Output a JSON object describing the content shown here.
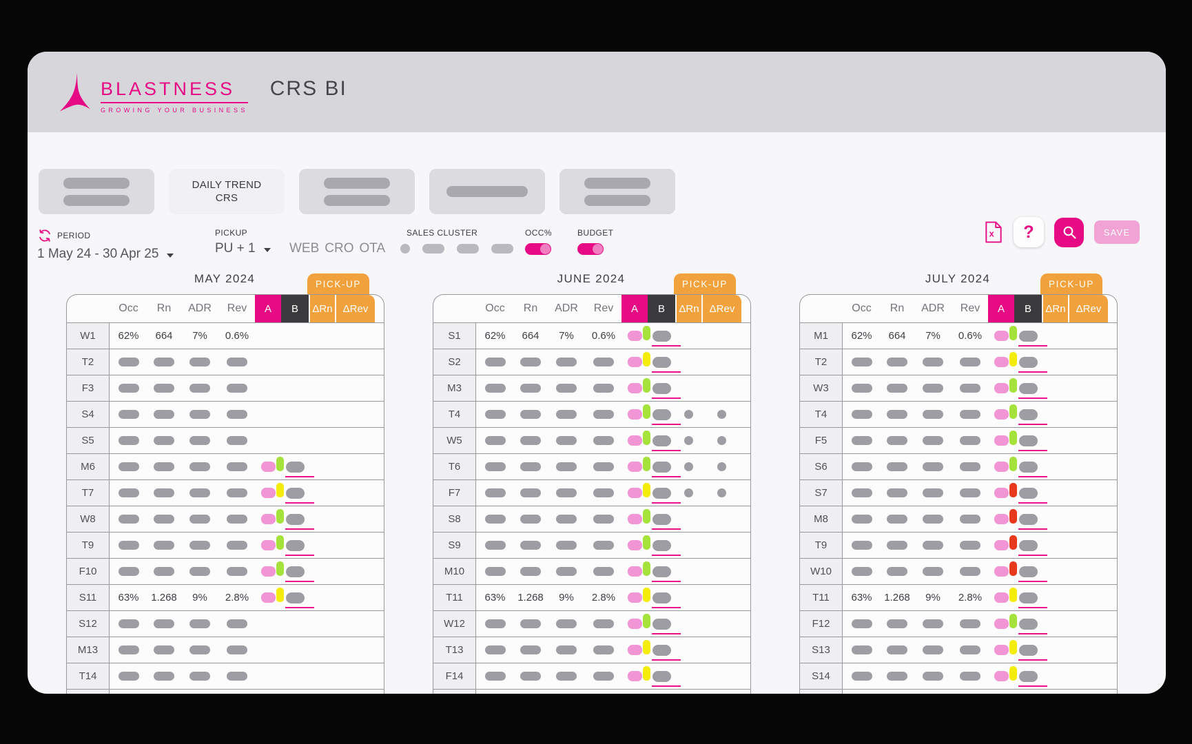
{
  "app": {
    "brand": "BLASTNESS",
    "tagline": "GROWING YOUR BUSINESS",
    "title": "CRS BI"
  },
  "tabs": {
    "items": [
      {
        "type": "placeholder",
        "bars": 2
      },
      {
        "type": "active",
        "label": "DAILY TREND CRS"
      },
      {
        "type": "placeholder",
        "bars": 2
      },
      {
        "type": "placeholder",
        "bars": 1
      },
      {
        "type": "placeholder",
        "bars": 2
      }
    ]
  },
  "filters": {
    "period": {
      "label": "PERIOD",
      "value": "1 May 24 - 30 Apr 25"
    },
    "pickup": {
      "label": "PICKUP",
      "value": "PU + 1"
    },
    "sales_cluster": {
      "label": "SALES CLUSTER",
      "values": [
        "WEB",
        "CRO",
        "OTA"
      ],
      "placeholder_circle": 1,
      "placeholder_pills": 3
    },
    "occ": {
      "label": "OCC%",
      "state": "on"
    },
    "budget": {
      "label": "BUDGET",
      "state": "on"
    }
  },
  "actions": {
    "help": "?",
    "save": "SAVE"
  },
  "table": {
    "columns": [
      "Occ",
      "Rn",
      "ADR",
      "Rev"
    ],
    "col_a": "A",
    "col_b": "B",
    "col_drn": "ΔRn",
    "col_drev": "ΔRev",
    "pickup_tab": "PICK-UP"
  },
  "months": [
    {
      "title": "MAY 2024",
      "rows": [
        {
          "day": "W1",
          "values": [
            "62%",
            "664",
            "7%",
            "0.6%"
          ],
          "a": false,
          "b": null,
          "pu": false,
          "underline": false,
          "dots": false
        },
        {
          "day": "T2",
          "values": null,
          "a": false,
          "b": null,
          "pu": false,
          "underline": false,
          "dots": false
        },
        {
          "day": "F3",
          "values": null,
          "a": false,
          "b": null,
          "pu": false,
          "underline": false,
          "dots": false
        },
        {
          "day": "S4",
          "values": null,
          "a": false,
          "b": null,
          "pu": false,
          "underline": false,
          "dots": false
        },
        {
          "day": "S5",
          "values": null,
          "a": false,
          "b": null,
          "pu": false,
          "underline": false,
          "dots": false
        },
        {
          "day": "M6",
          "values": null,
          "a": true,
          "b": "green",
          "pu": true,
          "underline": true,
          "dots": false
        },
        {
          "day": "T7",
          "values": null,
          "a": true,
          "b": "yellow",
          "pu": true,
          "underline": true,
          "dots": false
        },
        {
          "day": "W8",
          "values": null,
          "a": true,
          "b": "green",
          "pu": true,
          "underline": true,
          "dots": false
        },
        {
          "day": "T9",
          "values": null,
          "a": true,
          "b": "green",
          "pu": true,
          "underline": true,
          "dots": false
        },
        {
          "day": "F10",
          "values": null,
          "a": true,
          "b": "green",
          "pu": true,
          "underline": true,
          "dots": false
        },
        {
          "day": "S11",
          "values": [
            "63%",
            "1.268",
            "9%",
            "2.8%"
          ],
          "a": true,
          "b": "yellow",
          "pu": true,
          "underline": true,
          "dots": false
        },
        {
          "day": "S12",
          "values": null,
          "a": false,
          "b": null,
          "pu": false,
          "underline": false,
          "dots": false
        },
        {
          "day": "M13",
          "values": null,
          "a": false,
          "b": null,
          "pu": false,
          "underline": false,
          "dots": false
        },
        {
          "day": "T14",
          "values": null,
          "a": false,
          "b": null,
          "pu": false,
          "underline": false,
          "dots": false
        }
      ]
    },
    {
      "title": "JUNE 2024",
      "rows": [
        {
          "day": "S1",
          "values": [
            "62%",
            "664",
            "7%",
            "0.6%"
          ],
          "a": true,
          "b": "green",
          "pu": true,
          "underline": true,
          "dots": false
        },
        {
          "day": "S2",
          "values": null,
          "a": true,
          "b": "yellow",
          "pu": true,
          "underline": true,
          "dots": false
        },
        {
          "day": "M3",
          "values": null,
          "a": true,
          "b": "green",
          "pu": true,
          "underline": true,
          "dots": false
        },
        {
          "day": "T4",
          "values": null,
          "a": true,
          "b": "green",
          "pu": true,
          "underline": true,
          "dots": true
        },
        {
          "day": "W5",
          "values": null,
          "a": true,
          "b": "green",
          "pu": true,
          "underline": true,
          "dots": true
        },
        {
          "day": "T6",
          "values": null,
          "a": true,
          "b": "green",
          "pu": true,
          "underline": true,
          "dots": true
        },
        {
          "day": "F7",
          "values": null,
          "a": true,
          "b": "yellow",
          "pu": true,
          "underline": true,
          "dots": true
        },
        {
          "day": "S8",
          "values": null,
          "a": true,
          "b": "green",
          "pu": true,
          "underline": true,
          "dots": false
        },
        {
          "day": "S9",
          "values": null,
          "a": true,
          "b": "green",
          "pu": true,
          "underline": true,
          "dots": false
        },
        {
          "day": "M10",
          "values": null,
          "a": true,
          "b": "green",
          "pu": true,
          "underline": true,
          "dots": false
        },
        {
          "day": "T11",
          "values": [
            "63%",
            "1.268",
            "9%",
            "2.8%"
          ],
          "a": true,
          "b": "yellow",
          "pu": true,
          "underline": true,
          "dots": false
        },
        {
          "day": "W12",
          "values": null,
          "a": true,
          "b": "green",
          "pu": true,
          "underline": true,
          "dots": false
        },
        {
          "day": "T13",
          "values": null,
          "a": true,
          "b": "yellow",
          "pu": true,
          "underline": true,
          "dots": false
        },
        {
          "day": "F14",
          "values": null,
          "a": true,
          "b": "yellow",
          "pu": true,
          "underline": true,
          "dots": false
        }
      ]
    },
    {
      "title": "JULY 2024",
      "rows": [
        {
          "day": "M1",
          "values": [
            "62%",
            "664",
            "7%",
            "0.6%"
          ],
          "a": true,
          "b": "green",
          "pu": true,
          "underline": true,
          "dots": false
        },
        {
          "day": "T2",
          "values": null,
          "a": true,
          "b": "yellow",
          "pu": true,
          "underline": true,
          "dots": false
        },
        {
          "day": "W3",
          "values": null,
          "a": true,
          "b": "green",
          "pu": true,
          "underline": true,
          "dots": false
        },
        {
          "day": "T4",
          "values": null,
          "a": true,
          "b": "green",
          "pu": true,
          "underline": true,
          "dots": false
        },
        {
          "day": "F5",
          "values": null,
          "a": true,
          "b": "green",
          "pu": true,
          "underline": true,
          "dots": false
        },
        {
          "day": "S6",
          "values": null,
          "a": true,
          "b": "green",
          "pu": true,
          "underline": true,
          "dots": false
        },
        {
          "day": "S7",
          "values": null,
          "a": true,
          "b": "red",
          "pu": true,
          "underline": true,
          "dots": false
        },
        {
          "day": "M8",
          "values": null,
          "a": true,
          "b": "red",
          "pu": true,
          "underline": true,
          "dots": false
        },
        {
          "day": "T9",
          "values": null,
          "a": true,
          "b": "red",
          "pu": true,
          "underline": true,
          "dots": false
        },
        {
          "day": "W10",
          "values": null,
          "a": true,
          "b": "red",
          "pu": true,
          "underline": true,
          "dots": false
        },
        {
          "day": "T11",
          "values": [
            "63%",
            "1.268",
            "9%",
            "2.8%"
          ],
          "a": true,
          "b": "yellow",
          "pu": true,
          "underline": true,
          "dots": false
        },
        {
          "day": "F12",
          "values": null,
          "a": true,
          "b": "green",
          "pu": true,
          "underline": true,
          "dots": false
        },
        {
          "day": "S13",
          "values": null,
          "a": true,
          "b": "yellow",
          "pu": true,
          "underline": true,
          "dots": false
        },
        {
          "day": "S14",
          "values": null,
          "a": true,
          "b": "yellow",
          "pu": true,
          "underline": true,
          "dots": false
        }
      ]
    }
  ],
  "colors": {
    "brand_magenta": "#E60A84",
    "accent_orange": "#F2A23D",
    "dark_header": "#3B3B3E",
    "indicator_a": "#F295D5",
    "indicator_green": "#A6E23C",
    "indicator_yellow": "#F4EC0A",
    "indicator_red": "#E8391D",
    "placeholder_gray": "#9D9DA3",
    "underline_magenta": "#EC0F8C",
    "save_pink": "#F0A3D4"
  }
}
